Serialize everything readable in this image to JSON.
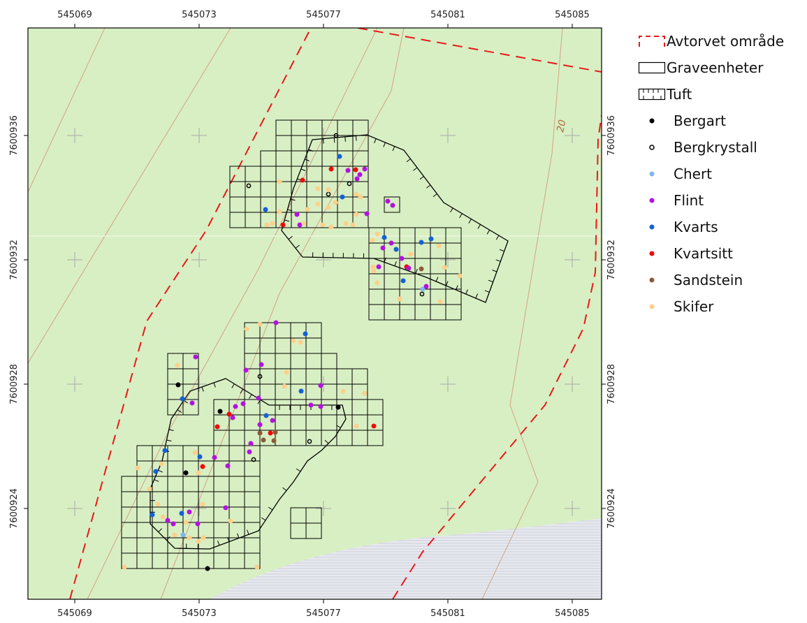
{
  "map": {
    "x_ticks": [
      "545069",
      "545073",
      "545077",
      "545081",
      "545085"
    ],
    "y_ticks": [
      "7600936",
      "7600932",
      "7600928",
      "7600924"
    ],
    "contour_label": "20",
    "colors": {
      "background": "#d8efc3",
      "water": "#dfe3ea",
      "boundary": "#e8191c",
      "contour": "#d3a98a",
      "grid": "#000000"
    }
  },
  "legend": {
    "items": [
      {
        "label": "Avtorvet område",
        "kind": "dashed-area",
        "color": "#e8191c"
      },
      {
        "label": "Graveenheter",
        "kind": "box",
        "color": "#000000"
      },
      {
        "label": "Tuft",
        "kind": "hatched-box",
        "color": "#000000"
      },
      {
        "label": "Bergart",
        "kind": "dot",
        "color": "#000000"
      },
      {
        "label": "Bergkrystall",
        "kind": "ring",
        "color": "#000000"
      },
      {
        "label": "Chert",
        "kind": "dot",
        "color": "#7fb6f0"
      },
      {
        "label": "Flint",
        "kind": "dot",
        "color": "#b312e0"
      },
      {
        "label": "Kvarts",
        "kind": "dot",
        "color": "#1560d8"
      },
      {
        "label": "Kvartsitt",
        "kind": "dot",
        "color": "#f00a0a"
      },
      {
        "label": "Sandstein",
        "kind": "dot",
        "color": "#8b5a3c"
      },
      {
        "label": "Skifer",
        "kind": "dot",
        "color": "#fcd08a"
      }
    ]
  }
}
